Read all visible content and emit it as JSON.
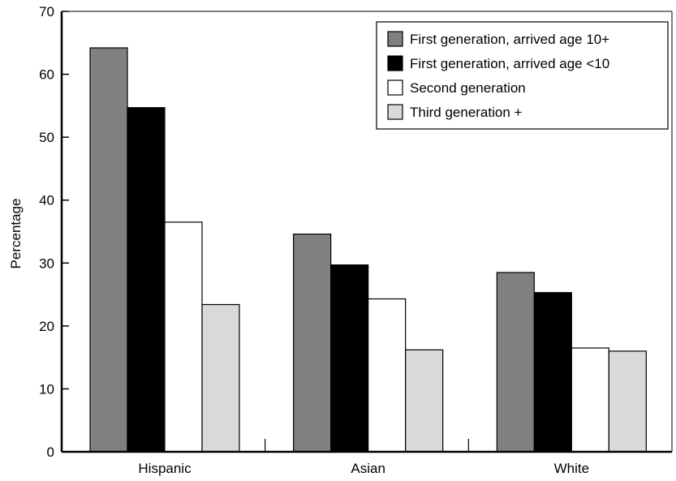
{
  "chart_data": {
    "type": "bar",
    "title": "",
    "xlabel": "",
    "ylabel": "Percentage",
    "ylim": [
      0,
      70
    ],
    "yticks": [
      0,
      10,
      20,
      30,
      40,
      50,
      60,
      70
    ],
    "grid": false,
    "legend_position": "top-right",
    "categories": [
      "Hispanic",
      "Asian",
      "White"
    ],
    "series": [
      {
        "name": "First generation, arrived age 10+",
        "color": "#808080",
        "values": [
          64.2,
          34.6,
          28.5
        ]
      },
      {
        "name": "First generation, arrived age <10",
        "color": "#000000",
        "values": [
          54.7,
          29.7,
          25.3
        ]
      },
      {
        "name": "Second generation",
        "color": "#ffffff",
        "values": [
          36.5,
          24.3,
          16.5
        ]
      },
      {
        "name": "Third generation +",
        "color": "#d9d9d9",
        "values": [
          23.4,
          16.2,
          16.0
        ]
      }
    ]
  }
}
